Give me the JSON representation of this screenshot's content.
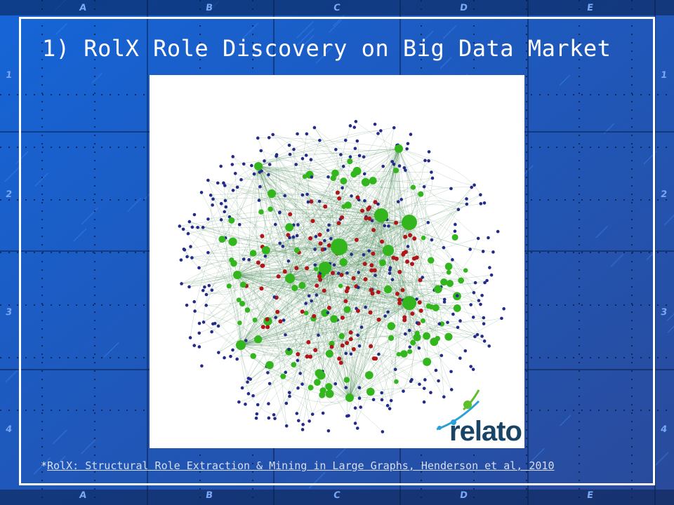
{
  "slide": {
    "title": "1)  RolX Role Discovery on Big Data Market",
    "footnote_prefix": "*",
    "footnote_link": "RolX: Structural Role Extraction & Mining in Large Graphs, Henderson et al, 2010",
    "logo_text": "relato"
  },
  "grid": {
    "columns": [
      "A",
      "B",
      "C",
      "D",
      "E"
    ],
    "rows": [
      "1",
      "2",
      "3",
      "4"
    ]
  },
  "colors": {
    "background_top": "#1565d8",
    "background_bottom": "#2a4a9a",
    "grid_line": "#0a1f4a",
    "node_blue": "#242a8a",
    "node_red": "#b0151a",
    "node_green": "#33b51e",
    "edge": "#4a8a5a",
    "logo_text": "#1a4466"
  }
}
